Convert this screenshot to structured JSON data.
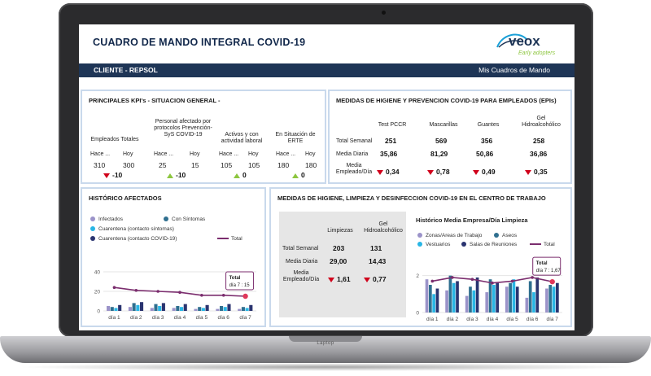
{
  "laptop": {
    "label": "Laptop"
  },
  "header": {
    "title": "CUADRO DE MANDO INTEGRAL COVID-19",
    "logo_text": "veox",
    "logo_tagline": "Early adopters"
  },
  "bar": {
    "client": "CLIENTE - REPSOL",
    "right": "Mis Cuadros de Mando"
  },
  "kpi": {
    "title": "PRINCIPALES KPI's  - SITUACION GENERAL -",
    "hace_label": "Hace ...",
    "hoy_label": "Hoy",
    "groups": [
      {
        "label": "Empleados Totales",
        "hace": "310",
        "hoy": "300",
        "delta": "-10",
        "trend": "down"
      },
      {
        "label": "Personal afectado por protocolos Prevención-SyS COVID-19",
        "hace": "25",
        "hoy": "15",
        "delta": "-10",
        "trend": "up"
      },
      {
        "label": "Activos y con actividad laboral",
        "hace": "105",
        "hoy": "105",
        "delta": "0",
        "trend": "up"
      },
      {
        "label": "En Situación de ERTE",
        "hace": "180",
        "hoy": "180",
        "delta": "0",
        "trend": "up"
      }
    ]
  },
  "epis": {
    "title": "MEDIDAS DE HIGIENE Y PREVENCION COVID-19 PARA EMPLEADOS (EPIs)",
    "columns": [
      "Test PCCR",
      "Mascarillas",
      "Guantes",
      "Gel Hidroalcohólico"
    ],
    "rows": [
      {
        "label": "Total Semanal",
        "values": [
          "251",
          "569",
          "356",
          "258"
        ]
      },
      {
        "label": "Media Diaria",
        "values": [
          "35,86",
          "81,29",
          "50,86",
          "36,86"
        ]
      },
      {
        "label": "Media Empleado/Día",
        "values": [
          "0,34",
          "0,78",
          "0,49",
          "0,35"
        ]
      }
    ]
  },
  "historico": {
    "title": "HISTÓRICO AFECTADOS",
    "legend": [
      "Infectados",
      "Con Síntomas",
      "Cuarentena (contacto síntomas)",
      "Cuarentena (contacto COVID-19)",
      "Total"
    ],
    "tooltip_title": "Total",
    "tooltip_value": "día 7 : 15"
  },
  "limpieza": {
    "title": "MEDIDAS DE HIGIENE, LIMPIEZA Y DESINFECCION COVID-19 EN EL CENTRO DE TRABAJO",
    "columns": [
      "Limpiezas",
      "Gel Hidroalcohólico"
    ],
    "rows": [
      {
        "label": "Total Semanal",
        "values": [
          "203",
          "131"
        ]
      },
      {
        "label": "Media Diaria",
        "values": [
          "29,00",
          "14,43"
        ]
      },
      {
        "label": "Media Empleado/Día",
        "values": [
          "1,61",
          "0,77"
        ]
      }
    ],
    "chart_title": "Histórico Media Empresa/Día Limpieza",
    "legend": [
      "Zonas/Areas de Trabajo",
      "Aseos",
      "Vestuarios",
      "Salas de Reuniones",
      "Total"
    ],
    "tooltip_title": "Total",
    "tooltip_value": "día 7 : 1,67"
  },
  "colors": {
    "navy": "#1e3556",
    "border": "#c9d9ec",
    "down": "#d0021b",
    "up": "#8dc63f",
    "line": "#7b2d6e"
  },
  "chart_data": [
    {
      "type": "bar",
      "title": "HISTÓRICO AFECTADOS",
      "categories": [
        "día 1",
        "día 2",
        "día 3",
        "día 4",
        "día 5",
        "día 6",
        "día 7"
      ],
      "ylim": [
        0,
        40
      ],
      "yticks": [
        "0",
        "20",
        "40"
      ],
      "series": [
        {
          "name": "Infectados",
          "color": "#9b93c9",
          "values": [
            5,
            4,
            3,
            3,
            2,
            2,
            2
          ]
        },
        {
          "name": "Con Síntomas",
          "color": "#2f6f8f",
          "values": [
            4,
            8,
            7,
            5,
            4,
            5,
            4
          ]
        },
        {
          "name": "Cuarentena (contacto síntomas)",
          "color": "#29b6e5",
          "values": [
            3,
            6,
            5,
            4,
            3,
            4,
            3
          ]
        },
        {
          "name": "Cuarentena (contacto COVID-19)",
          "color": "#2a3470",
          "values": [
            6,
            9,
            8,
            7,
            6,
            7,
            6
          ]
        },
        {
          "name": "Total",
          "type": "line",
          "color": "#7b2d6e",
          "values": [
            24,
            21,
            20,
            19,
            16,
            16,
            15
          ]
        }
      ]
    },
    {
      "type": "bar",
      "title": "Histórico Media Empresa/Día Limpieza",
      "categories": [
        "día 1",
        "día 2",
        "día 3",
        "día 4",
        "día 5",
        "día 6",
        "día 7"
      ],
      "ylim": [
        0,
        3
      ],
      "yticks": [
        "0",
        "2"
      ],
      "series": [
        {
          "name": "Zonas/Areas de Trabajo",
          "color": "#9b93c9",
          "values": [
            1.8,
            1.2,
            0.9,
            1.1,
            1.4,
            0.8,
            1.3
          ]
        },
        {
          "name": "Aseos",
          "color": "#2f6f8f",
          "values": [
            1.5,
            2.0,
            1.4,
            1.8,
            1.6,
            1.7,
            1.5
          ]
        },
        {
          "name": "Vestuarios",
          "color": "#29b6e5",
          "values": [
            1.0,
            1.6,
            1.2,
            1.5,
            1.8,
            1.1,
            1.4
          ]
        },
        {
          "name": "Salas de Reuniones",
          "color": "#2a3470",
          "values": [
            1.3,
            1.7,
            1.9,
            1.6,
            1.4,
            1.9,
            1.6
          ]
        },
        {
          "name": "Total",
          "type": "line",
          "color": "#7b2d6e",
          "values": [
            1.7,
            1.9,
            1.8,
            1.6,
            1.7,
            1.9,
            1.67
          ]
        }
      ]
    }
  ]
}
